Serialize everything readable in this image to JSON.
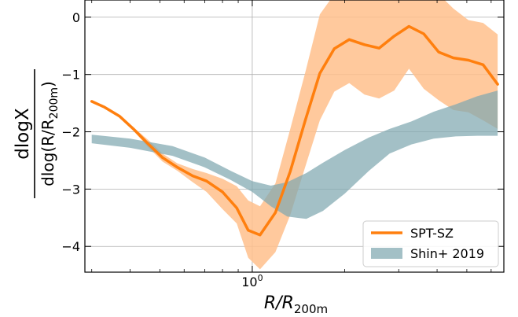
{
  "chart_data": {
    "type": "line",
    "x_scale": "log",
    "grid": true,
    "legend_position": "lower-right",
    "xlabel": {
      "main": "R/R",
      "sub": "200m"
    },
    "ylabel": {
      "num": "dlogX",
      "den_main": "dlog(R/R",
      "den_sub": "200m",
      "den_close": ")"
    },
    "xlim": [
      0.285,
      6.6
    ],
    "ylim": [
      -4.45,
      0.3
    ],
    "x_ticks": [
      {
        "value": 1.0,
        "base": "10",
        "exp": "0"
      }
    ],
    "y_ticks": [
      {
        "value": 0,
        "label": "0"
      },
      {
        "value": -1,
        "label": "−1"
      },
      {
        "value": -2,
        "label": "−2"
      },
      {
        "value": -3,
        "label": "−3"
      },
      {
        "value": -4,
        "label": "−4"
      }
    ],
    "series": [
      {
        "name": "SPT-SZ",
        "kind": "line_with_band",
        "color": "#ff7f0e",
        "band_color": "#ffc08c",
        "x": [
          0.3,
          0.33,
          0.37,
          0.41,
          0.46,
          0.51,
          0.57,
          0.64,
          0.71,
          0.8,
          0.89,
          0.97,
          1.06,
          1.19,
          1.33,
          1.49,
          1.66,
          1.85,
          2.07,
          2.32,
          2.59,
          2.9,
          3.24,
          3.62,
          4.05,
          4.52,
          5.06,
          5.65,
          6.3
        ],
        "y": [
          -1.47,
          -1.57,
          -1.73,
          -1.95,
          -2.22,
          -2.45,
          -2.62,
          -2.77,
          -2.86,
          -3.05,
          -3.33,
          -3.72,
          -3.8,
          -3.41,
          -2.69,
          -1.79,
          -0.98,
          -0.55,
          -0.39,
          -0.48,
          -0.54,
          -0.33,
          -0.16,
          -0.29,
          -0.61,
          -0.71,
          -0.75,
          -0.83,
          -1.17
        ],
        "band_upper": [
          -1.47,
          -1.57,
          -1.72,
          -1.92,
          -2.15,
          -2.38,
          -2.55,
          -2.65,
          -2.72,
          -2.82,
          -2.95,
          -3.2,
          -3.3,
          -2.9,
          -1.95,
          -0.95,
          0.05,
          0.4,
          0.4,
          0.4,
          0.4,
          0.4,
          0.4,
          0.4,
          0.4,
          0.15,
          -0.05,
          -0.1,
          -0.3
        ],
        "band_lower": [
          -1.47,
          -1.57,
          -1.75,
          -1.98,
          -2.28,
          -2.52,
          -2.68,
          -2.88,
          -3.05,
          -3.35,
          -3.6,
          -4.2,
          -4.4,
          -4.1,
          -3.45,
          -2.6,
          -1.8,
          -1.3,
          -1.15,
          -1.35,
          -1.42,
          -1.28,
          -0.9,
          -1.25,
          -1.45,
          -1.62,
          -1.66,
          -1.8,
          -1.95
        ]
      },
      {
        "name": "Shin+ 2019",
        "kind": "band",
        "color": "#7fa8b0",
        "x": [
          0.3,
          0.4,
          0.55,
          0.7,
          0.85,
          1.0,
          1.15,
          1.3,
          1.5,
          1.7,
          2.0,
          2.4,
          2.8,
          3.3,
          3.9,
          4.6,
          5.4,
          6.3
        ],
        "band_upper": [
          -2.05,
          -2.12,
          -2.25,
          -2.45,
          -2.68,
          -2.86,
          -2.94,
          -2.88,
          -2.72,
          -2.54,
          -2.32,
          -2.1,
          -1.95,
          -1.82,
          -1.65,
          -1.52,
          -1.38,
          -1.28
        ],
        "band_lower": [
          -2.2,
          -2.28,
          -2.42,
          -2.62,
          -2.84,
          -3.05,
          -3.3,
          -3.48,
          -3.52,
          -3.38,
          -3.08,
          -2.68,
          -2.38,
          -2.22,
          -2.12,
          -2.08,
          -2.07,
          -2.07
        ]
      }
    ],
    "legend": [
      {
        "label": "SPT-SZ",
        "symbol": "line",
        "color": "#ff7f0e"
      },
      {
        "label": "Shin+ 2019",
        "symbol": "patch",
        "color": "#7fa8b0"
      }
    ]
  }
}
